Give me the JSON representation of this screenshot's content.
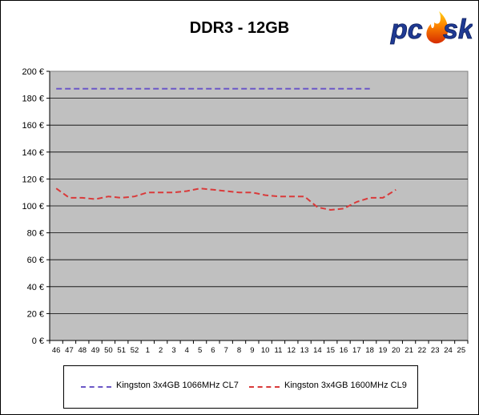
{
  "chart_data": {
    "type": "line",
    "title": "DDR3 - 12GB",
    "xlabel": "",
    "ylabel": "",
    "categories": [
      "46",
      "47",
      "48",
      "49",
      "50",
      "51",
      "52",
      "1",
      "2",
      "3",
      "4",
      "5",
      "6",
      "7",
      "8",
      "9",
      "10",
      "11",
      "12",
      "13",
      "14",
      "15",
      "16",
      "17",
      "18",
      "19",
      "20",
      "21",
      "22",
      "23",
      "24",
      "25"
    ],
    "y_ticks": [
      "0 €",
      "20 €",
      "40 €",
      "60 €",
      "80 €",
      "100 €",
      "120 €",
      "140 €",
      "160 €",
      "180 €",
      "200 €"
    ],
    "ylim": [
      0,
      200
    ],
    "grid": "horizontal",
    "legend_position": "bottom",
    "series": [
      {
        "name": "Kingston 3x4GB 1066MHz CL7",
        "color": "#6b57c7",
        "values": [
          187,
          187,
          187,
          187,
          187,
          187,
          187,
          187,
          187,
          187,
          187,
          187,
          187,
          187,
          187,
          187,
          187,
          187,
          187,
          187,
          187,
          187,
          187,
          187,
          187,
          null,
          null,
          null,
          null,
          null,
          null,
          null
        ]
      },
      {
        "name": "Kingston 3x4GB 1600MHz CL9",
        "color": "#d93a3a",
        "values": [
          113,
          106,
          106,
          105,
          107,
          106,
          107,
          110,
          110,
          110,
          111,
          113,
          112,
          111,
          110,
          110,
          108,
          107,
          107,
          107,
          99,
          97,
          98,
          103,
          106,
          106,
          112,
          null,
          null,
          null,
          null,
          null
        ]
      }
    ]
  },
  "logo": {
    "text": "pcask"
  }
}
